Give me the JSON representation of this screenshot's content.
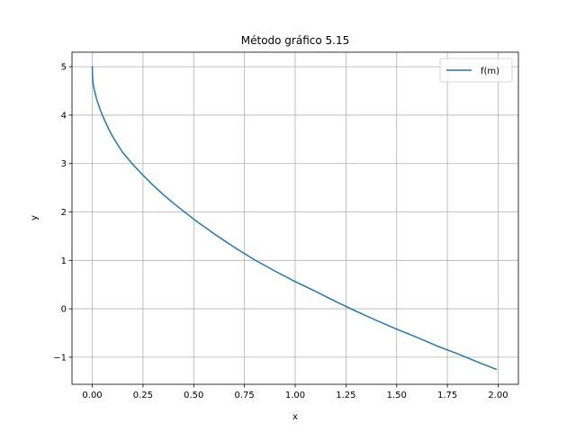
{
  "chart_data": {
    "type": "line",
    "title": "Método gráfico 5.15",
    "xlabel": "x",
    "ylabel": "y",
    "xlim": [
      -0.1,
      2.1
    ],
    "ylim": [
      -1.56,
      5.3
    ],
    "x_ticks": [
      0.0,
      0.25,
      0.5,
      0.75,
      1.0,
      1.25,
      1.5,
      1.75,
      2.0
    ],
    "x_tick_labels": [
      "0.00",
      "0.25",
      "0.50",
      "0.75",
      "1.00",
      "1.25",
      "1.50",
      "1.75",
      "2.00"
    ],
    "y_ticks": [
      -1,
      0,
      1,
      2,
      3,
      4,
      5
    ],
    "y_tick_labels": [
      "−1",
      "0",
      "1",
      "2",
      "3",
      "4",
      "5"
    ],
    "grid": true,
    "legend": {
      "position": "top-right"
    },
    "series": [
      {
        "name": "f(m)",
        "color": "#1f77b4",
        "x": [
          0.0,
          0.001,
          0.003,
          0.006,
          0.01,
          0.02,
          0.04,
          0.06,
          0.08,
          0.1,
          0.125,
          0.15,
          0.2,
          0.25,
          0.3,
          0.35,
          0.4,
          0.5,
          0.6,
          0.7,
          0.75,
          0.8,
          0.9,
          1.0,
          1.1,
          1.2,
          1.25,
          1.3,
          1.4,
          1.5,
          1.6,
          1.7,
          1.75,
          1.8,
          1.9,
          1.99
        ],
        "y": [
          5.0,
          4.8,
          4.7,
          4.6,
          4.52,
          4.35,
          4.1,
          3.9,
          3.72,
          3.56,
          3.39,
          3.23,
          2.98,
          2.76,
          2.55,
          2.36,
          2.18,
          1.85,
          1.55,
          1.27,
          1.14,
          1.01,
          0.78,
          0.56,
          0.36,
          0.15,
          0.05,
          -0.05,
          -0.24,
          -0.42,
          -0.59,
          -0.77,
          -0.85,
          -0.93,
          -1.1,
          -1.25
        ]
      }
    ]
  }
}
